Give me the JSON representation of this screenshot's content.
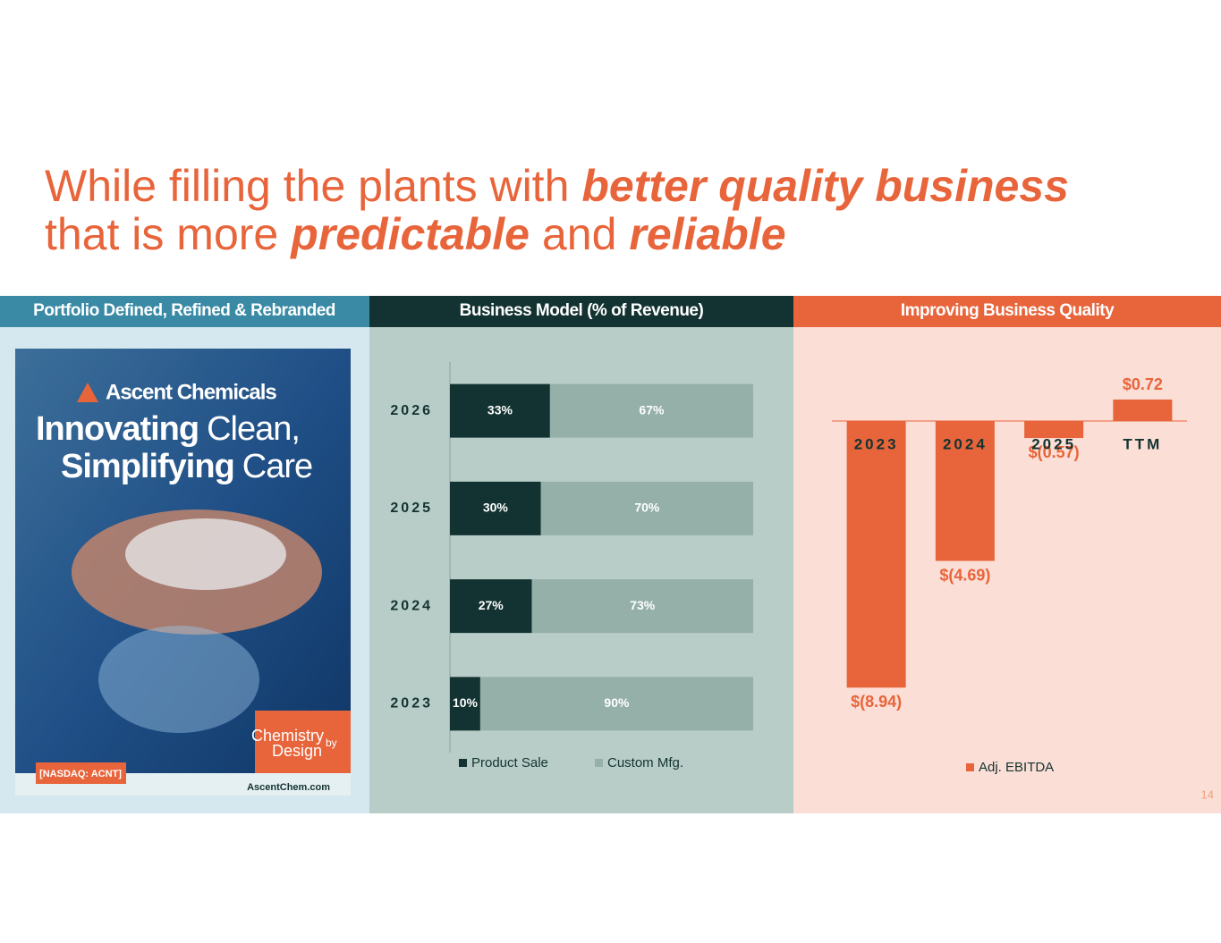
{
  "title": [
    "While filling the plants with",
    "better quality business",
    "that is more",
    "predictable",
    "and",
    "reliable"
  ],
  "poster": {
    "header": "Portfolio Defined, Refined & Rebranded",
    "brand": "Ascent Chemicals",
    "headline": [
      "Innovating",
      "Clean,",
      "Simplifying",
      "Care"
    ],
    "badge": [
      "Chemistry",
      "by",
      "Design"
    ],
    "ticker": "[NASDAQ: ACNT]",
    "website": "AscentChem.com"
  },
  "page_number": "14",
  "chart_data": [
    {
      "type": "bar",
      "orientation": "horizontal",
      "stacked": true,
      "title": "Business Model (% of Revenue)",
      "categories": [
        "2026",
        "2025",
        "2024",
        "2023"
      ],
      "xlim": [
        0,
        100
      ],
      "series": [
        {
          "name": "Product Sale",
          "color": "#133332",
          "values": [
            33,
            30,
            27,
            10
          ],
          "value_labels": [
            "33%",
            "30%",
            "27%",
            "10%"
          ]
        },
        {
          "name": "Custom Mfg.",
          "color": "#94b0a8",
          "values": [
            67,
            70,
            73,
            90
          ],
          "value_labels": [
            "67%",
            "70%",
            "73%",
            "90%"
          ]
        }
      ]
    },
    {
      "type": "bar",
      "orientation": "vertical",
      "title": "Improving Business Quality",
      "categories": [
        "2023",
        "2024",
        "2025",
        "TTM"
      ],
      "ylim": [
        -9.5,
        1.5
      ],
      "series": [
        {
          "name": "Adj. EBITDA",
          "color": "#e8643a",
          "values": [
            -8.94,
            -4.69,
            -0.57,
            0.72
          ],
          "value_labels": [
            "$(8.94)",
            "$(4.69)",
            "$(0.57)",
            "$0.72"
          ]
        }
      ]
    }
  ]
}
